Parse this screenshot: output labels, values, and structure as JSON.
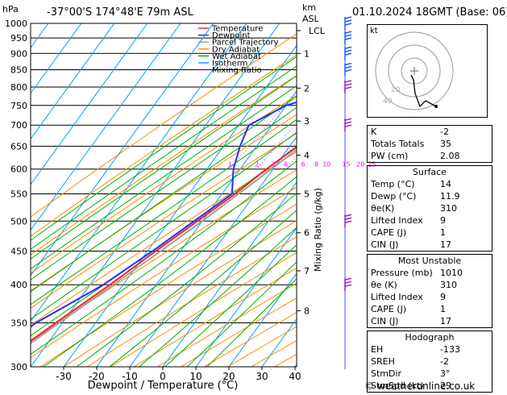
{
  "header": {
    "location": "-37°00'S  174°48'E  79m  ASL",
    "hpa_unit": "hPa",
    "km_unit": "km",
    "asl_unit": "ASL",
    "datetime": "01.10.2024  18GMT  (Base: 06)"
  },
  "chart_data": {
    "type": "skew-t log-p",
    "xlabel": "Dewpoint / Temperature (°C)",
    "ylabel_right": "Mixing Ratio (g/kg)",
    "pressure_levels": [
      300,
      350,
      400,
      450,
      500,
      550,
      600,
      650,
      700,
      750,
      800,
      850,
      900,
      950,
      1000
    ],
    "temperature_ticks": [
      -30,
      -20,
      -10,
      0,
      10,
      20,
      30,
      40
    ],
    "xlim": [
      -40,
      40
    ],
    "ylim_hpa": [
      1000,
      300
    ],
    "km_ticks": [
      {
        "km": 1,
        "p": 900
      },
      {
        "km": 2,
        "p": 797
      },
      {
        "km": 3,
        "p": 710
      },
      {
        "km": 4,
        "p": 630
      },
      {
        "km": 5,
        "p": 550
      },
      {
        "km": 6,
        "p": 480
      },
      {
        "km": 7,
        "p": 420
      },
      {
        "km": 8,
        "p": 365
      }
    ],
    "lcl_label": "LCL",
    "lcl_p": 975,
    "mixing_ratio_labels": [
      "1",
      "2",
      "3",
      "4",
      "6",
      "8",
      "10",
      "15",
      "20",
      "25"
    ],
    "mixing_ratios": [
      1,
      2,
      3,
      4,
      6,
      8,
      10,
      15,
      20,
      25
    ],
    "legend": [
      "Temperature",
      "Dewpoint",
      "Parcel Trajectory",
      "Dry Adiabat",
      "Wet Adiabat",
      "Isotherm",
      "Mixing Ratio"
    ],
    "colors": {
      "temperature": "#ff2020",
      "dewpoint": "#2030ff",
      "parcel": "#a0a0a0",
      "dry_adiabat": "#ff8c00",
      "wet_adiabat": "#00b000",
      "isotherm": "#00a0ff",
      "mixing_ratio": "#ff00ff",
      "wind_barb": "#9020c0"
    },
    "temperature_profile": [
      {
        "p": 1000,
        "t": 14
      },
      {
        "p": 950,
        "t": 11
      },
      {
        "p": 900,
        "t": 8
      },
      {
        "p": 850,
        "t": 5
      },
      {
        "p": 800,
        "t": 2
      },
      {
        "p": 750,
        "t": -1
      },
      {
        "p": 700,
        "t": -3.5
      },
      {
        "p": 650,
        "t": -7.5
      },
      {
        "p": 600,
        "t": -12
      },
      {
        "p": 550,
        "t": -16
      },
      {
        "p": 500,
        "t": -21.5
      },
      {
        "p": 450,
        "t": -27.5
      },
      {
        "p": 400,
        "t": -34
      },
      {
        "p": 350,
        "t": -42
      },
      {
        "p": 300,
        "t": -51
      }
    ],
    "dewpoint_profile": [
      {
        "p": 1000,
        "t": 11.9
      },
      {
        "p": 950,
        "t": 9
      },
      {
        "p": 900,
        "t": 6
      },
      {
        "p": 850,
        "t": 3
      },
      {
        "p": 800,
        "t": -6
      },
      {
        "p": 750,
        "t": -20
      },
      {
        "p": 700,
        "t": -27
      },
      {
        "p": 650,
        "t": -25
      },
      {
        "p": 600,
        "t": -22
      },
      {
        "p": 550,
        "t": -17
      },
      {
        "p": 500,
        "t": -22.5
      },
      {
        "p": 450,
        "t": -28.5
      },
      {
        "p": 400,
        "t": -36
      },
      {
        "p": 350,
        "t": -48
      },
      {
        "p": 300,
        "t": -56
      }
    ],
    "parcel_profile": [
      {
        "p": 1000,
        "t": 14
      },
      {
        "p": 975,
        "t": 12.5
      },
      {
        "p": 900,
        "t": 9
      },
      {
        "p": 850,
        "t": 6.5
      },
      {
        "p": 800,
        "t": 3.5
      },
      {
        "p": 750,
        "t": 0.5
      },
      {
        "p": 700,
        "t": -3
      },
      {
        "p": 650,
        "t": -6.5
      },
      {
        "p": 600,
        "t": -10.5
      },
      {
        "p": 550,
        "t": -15
      },
      {
        "p": 500,
        "t": -20
      },
      {
        "p": 450,
        "t": -26
      },
      {
        "p": 400,
        "t": -33
      },
      {
        "p": 350,
        "t": -41
      },
      {
        "p": 300,
        "t": -50
      }
    ],
    "wind_barb_levels": [
      400,
      500,
      700,
      800,
      850,
      900,
      950,
      1000
    ]
  },
  "hodograph": {
    "label": "kt",
    "ring_labels": [
      "20",
      "40"
    ]
  },
  "indices": [
    {
      "label": "K",
      "value": "-2"
    },
    {
      "label": "Totals Totals",
      "value": "35"
    },
    {
      "label": "PW (cm)",
      "value": "2.08"
    }
  ],
  "surface": {
    "title": "Surface",
    "rows": [
      {
        "label": "Temp (°C)",
        "value": "14"
      },
      {
        "label": "Dewp (°C)",
        "value": "11.9"
      },
      {
        "label": "θe(K)",
        "value": "310"
      },
      {
        "label": "Lifted Index",
        "value": "9"
      },
      {
        "label": "CAPE (J)",
        "value": "1"
      },
      {
        "label": "CIN (J)",
        "value": "17"
      }
    ]
  },
  "most_unstable": {
    "title": "Most Unstable",
    "rows": [
      {
        "label": "Pressure (mb)",
        "value": "1010"
      },
      {
        "label": "θe (K)",
        "value": "310"
      },
      {
        "label": "Lifted Index",
        "value": "9"
      },
      {
        "label": "CAPE (J)",
        "value": "1"
      },
      {
        "label": "CIN (J)",
        "value": "17"
      }
    ]
  },
  "hodo_table": {
    "title": "Hodograph",
    "rows": [
      {
        "label": "EH",
        "value": "-133"
      },
      {
        "label": "SREH",
        "value": "-2"
      },
      {
        "label": "StmDir",
        "value": "3°"
      },
      {
        "label": "StmSpd (kt)",
        "value": "29"
      }
    ]
  },
  "credit": "© weatheronline.co.uk"
}
